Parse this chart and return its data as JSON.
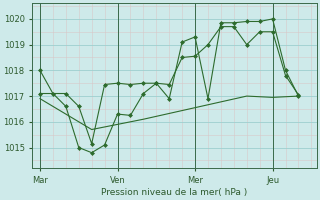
{
  "bg_color": "#ceeaea",
  "grid_color": "#9ecfcf",
  "line_color": "#2d6b2d",
  "marker_color": "#2d6b2d",
  "xlabel": "Pression niveau de la mer( hPa )",
  "xlabel_color": "#2d5a2d",
  "tick_color": "#2d5a2d",
  "yticks": [
    1015,
    1016,
    1017,
    1018,
    1019,
    1020
  ],
  "ylim": [
    1014.2,
    1020.6
  ],
  "xtick_labels": [
    "Mar",
    "Ven",
    "Mer",
    "Jeu"
  ],
  "xtick_positions": [
    0,
    3,
    6,
    9
  ],
  "vline_positions": [
    0,
    3,
    6,
    9
  ],
  "xlim": [
    -0.3,
    10.7
  ],
  "series1_x": [
    0,
    0.5,
    1,
    1.5,
    2,
    2.5,
    3,
    3.5,
    4,
    4.5,
    5,
    5.5,
    6,
    6.5,
    7,
    7.5,
    8,
    8.5,
    9,
    9.5,
    10
  ],
  "series1_y": [
    1018.0,
    1017.1,
    1016.6,
    1015.0,
    1014.8,
    1015.1,
    1016.3,
    1016.25,
    1017.1,
    1017.5,
    1016.9,
    1019.1,
    1019.3,
    1016.9,
    1019.85,
    1019.85,
    1019.9,
    1019.9,
    1020.0,
    1018.0,
    1017.0
  ],
  "series2_x": [
    0,
    1,
    1.5,
    2,
    2.5,
    3,
    3.5,
    4,
    4.5,
    5,
    5.5,
    6,
    6.5,
    7,
    7.5,
    8,
    8.5,
    9,
    9.5,
    10
  ],
  "series2_y": [
    1017.1,
    1017.1,
    1016.6,
    1015.15,
    1017.45,
    1017.5,
    1017.45,
    1017.5,
    1017.5,
    1017.45,
    1018.5,
    1018.55,
    1019.0,
    1019.7,
    1019.7,
    1019.0,
    1019.5,
    1019.5,
    1017.8,
    1017.05
  ],
  "series3_x": [
    0,
    2,
    4,
    6,
    8,
    9,
    10
  ],
  "series3_y": [
    1016.9,
    1015.7,
    1016.1,
    1016.55,
    1017.0,
    1016.95,
    1017.0
  ]
}
